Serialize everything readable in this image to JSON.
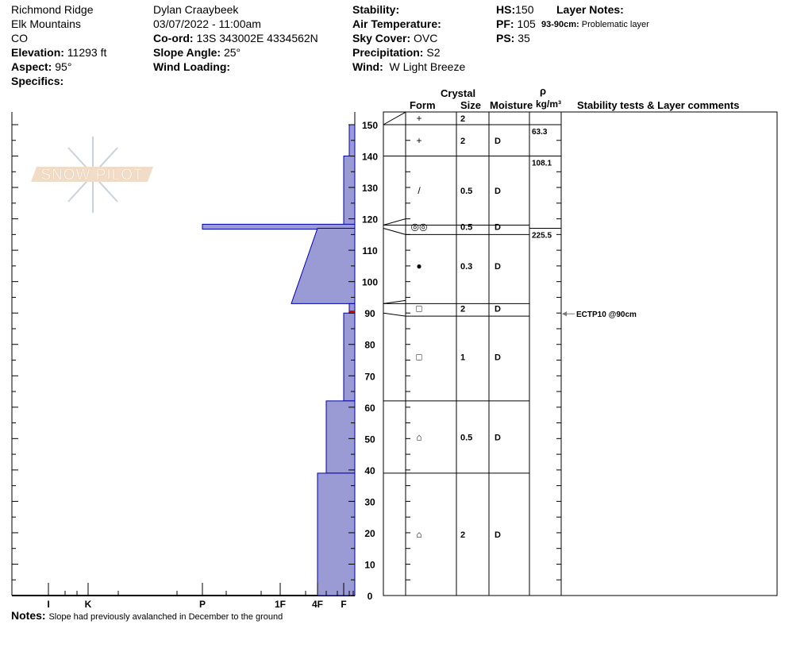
{
  "header": {
    "location": "Richmond Ridge",
    "range": "Elk Mountains",
    "state": "CO",
    "elevation_label": "Elevation:",
    "elevation": "11293 ft",
    "aspect_label": "Aspect:",
    "aspect": "95°",
    "specifics_label": "Specifics:",
    "observer": "Dylan Craaybeek",
    "datetime": "03/07/2022 - 11:00am",
    "coord_label": "Co-ord:",
    "coord": "13S 343002E 4334562N",
    "slope_label": "Slope Angle:",
    "slope": "25°",
    "wind_loading_label": "Wind Loading:",
    "stability_label": "Stability:",
    "air_temp_label": "Air Temperature:",
    "sky_label": "Sky Cover:",
    "sky": "OVC",
    "precip_label": "Precipitation:",
    "precip": "S2",
    "wind_label": "Wind:",
    "wind": "W Light Breeze",
    "hs_label": "HS:",
    "hs": "150",
    "pf_label": "PF:",
    "pf": "105",
    "ps_label": "PS:",
    "ps": "35",
    "layer_notes_label": "Layer Notes:",
    "layer_note_range": "93-90cm:",
    "layer_note_text": "Problematic layer"
  },
  "table_headers": {
    "crystal": "Crystal",
    "form": "Form",
    "size": "Size",
    "moisture": "Moisture",
    "rho": "ρ",
    "density_unit": "kg/m³",
    "comments": "Stability tests & Layer comments"
  },
  "notes_label": "Notes:",
  "notes": "Slope had previously avalanched in December to the ground",
  "logo_text": "SNOW PILOT",
  "colors": {
    "hardness_fill": "#9a9ad4",
    "hardness_stroke": "#0000aa",
    "critical": "#cc0000",
    "logo_band": "#f1dcc8",
    "logo_flake": "#c8d2dc"
  },
  "chart_data": {
    "type": "snow-profile",
    "y_axis": {
      "label": "",
      "range": [
        0,
        150
      ],
      "ticks": [
        0,
        10,
        20,
        30,
        40,
        50,
        60,
        70,
        80,
        90,
        100,
        110,
        120,
        130,
        140,
        150
      ]
    },
    "hardness_axis": {
      "ticks": [
        "I",
        "K",
        "P",
        "1F",
        "4F",
        "F"
      ]
    },
    "layers": [
      {
        "top": 150,
        "bottom": 150,
        "form": "+",
        "size": "2",
        "moisture": "",
        "hardness_top": "F-",
        "hardness_bottom": "F-"
      },
      {
        "top": 150,
        "bottom": 140,
        "form": "+",
        "size": "2",
        "moisture": "D",
        "hardness_top": "F-",
        "hardness_bottom": "F-"
      },
      {
        "top": 140,
        "bottom": 118,
        "form": "/",
        "size": "0.5",
        "moisture": "D",
        "hardness_top": "F",
        "hardness_bottom": "F"
      },
      {
        "top": 118,
        "bottom": 117,
        "form": "◎◎",
        "size": "0.5",
        "moisture": "D",
        "hardness_top": "P",
        "hardness_bottom": "P"
      },
      {
        "top": 117,
        "bottom": 93,
        "form": "●",
        "size": "0.3",
        "moisture": "D",
        "hardness_top": "4F",
        "hardness_bottom": "1F-"
      },
      {
        "top": 93,
        "bottom": 90,
        "form": "□",
        "size": "2",
        "moisture": "D",
        "hardness_top": "F-",
        "hardness_bottom": "F-"
      },
      {
        "top": 90,
        "bottom": 62,
        "form": "□",
        "size": "1",
        "moisture": "D",
        "hardness_top": "F",
        "hardness_bottom": "F"
      },
      {
        "top": 62,
        "bottom": 39,
        "form": "⌂",
        "size": "0.5",
        "moisture": "D",
        "hardness_top": "4F-",
        "hardness_bottom": "4F-"
      },
      {
        "top": 39,
        "bottom": 0,
        "form": "⌂",
        "size": "2",
        "moisture": "D",
        "hardness_top": "4F",
        "hardness_bottom": "4F"
      }
    ],
    "density": [
      {
        "top": 150,
        "bottom": 140,
        "value": "63.3"
      },
      {
        "top": 140,
        "bottom": 117,
        "value": "108.1"
      },
      {
        "top": 117,
        "bottom": 0,
        "value": "225.5"
      }
    ],
    "tests": [
      {
        "depth": 90,
        "label": "ECTP10 @90cm"
      }
    ]
  }
}
